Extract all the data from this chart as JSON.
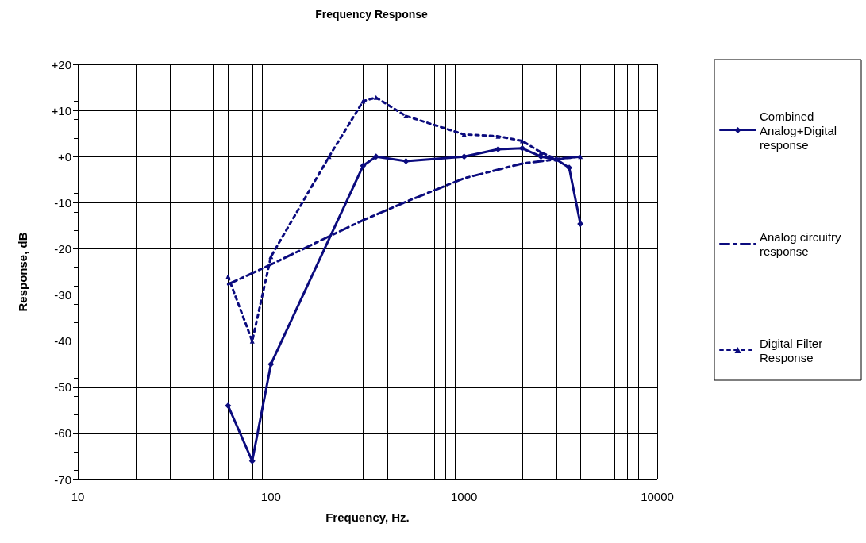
{
  "chart_data": {
    "type": "line",
    "title": "Frequency Response",
    "xlabel": "Frequency, Hz.",
    "ylabel": "Response, dB",
    "log": "x",
    "grid": true,
    "legend": "right",
    "xlim": [
      10,
      10000
    ],
    "xticks": [
      10,
      {
        "value": 20,
        "label": null
      },
      {
        "value": 30,
        "label": null
      },
      {
        "value": 40,
        "label": null
      },
      {
        "value": 50,
        "label": null
      },
      {
        "value": 60,
        "label": null
      },
      {
        "value": 70,
        "label": null
      },
      {
        "value": 80,
        "label": null
      },
      {
        "value": 90,
        "label": null
      },
      100,
      {
        "value": 200,
        "label": null
      },
      {
        "value": 300,
        "label": null
      },
      {
        "value": 400,
        "label": null
      },
      {
        "value": 500,
        "label": null
      },
      {
        "value": 600,
        "label": null
      },
      {
        "value": 700,
        "label": null
      },
      {
        "value": 800,
        "label": null
      },
      {
        "value": 900,
        "label": null
      },
      1000,
      {
        "value": 2000,
        "label": null
      },
      {
        "value": 3000,
        "label": null
      },
      {
        "value": 4000,
        "label": null
      },
      {
        "value": 5000,
        "label": null
      },
      {
        "value": 6000,
        "label": null
      },
      {
        "value": 7000,
        "label": null
      },
      {
        "value": 8000,
        "label": null
      },
      {
        "value": 9000,
        "label": null
      },
      10000
    ],
    "ylim": [
      -70,
      20
    ],
    "yticks": [
      {
        "value": 20,
        "label": "+20"
      },
      {
        "value": 10,
        "label": "+10"
      },
      {
        "value": 0,
        "label": "+0"
      },
      -10,
      -20,
      -30,
      -40,
      -50,
      -60,
      -70
    ],
    "series": [
      {
        "name": "Combined Analog+Digital response",
        "color": "#0b0b7e",
        "marker": "diamond",
        "line_style": "solid",
        "x": [
          60,
          80,
          100,
          300,
          350,
          500,
          1000,
          1500,
          2000,
          2500,
          3000,
          3500,
          4000
        ],
        "values": [
          -54,
          -66,
          -45,
          -2,
          0,
          -1,
          0,
          1.6,
          1.8,
          0,
          -0.6,
          -2.4,
          -14.6
        ]
      },
      {
        "name": "Analog circuitry response",
        "color": "#0b0b7e",
        "marker": "none",
        "line_style": "dashed",
        "x": [
          60,
          100,
          200,
          300,
          500,
          1000,
          2000,
          3000,
          4000
        ],
        "values": [
          -27.7,
          -23.4,
          -17.3,
          -13.8,
          -9.8,
          -4.7,
          -1.5,
          -0.6,
          0
        ]
      },
      {
        "name": "Digital Filter Response",
        "color": "#0b0b7e",
        "marker": "triangle",
        "line_style": "dotted",
        "x": [
          60,
          80,
          100,
          200,
          300,
          350,
          500,
          1000,
          1500,
          2000,
          2500,
          3000,
          4000
        ],
        "values": [
          -26,
          -40,
          -21.7,
          0,
          12,
          12.8,
          8.8,
          4.8,
          4.4,
          3.4,
          0.9,
          -0.5,
          0
        ]
      }
    ]
  }
}
